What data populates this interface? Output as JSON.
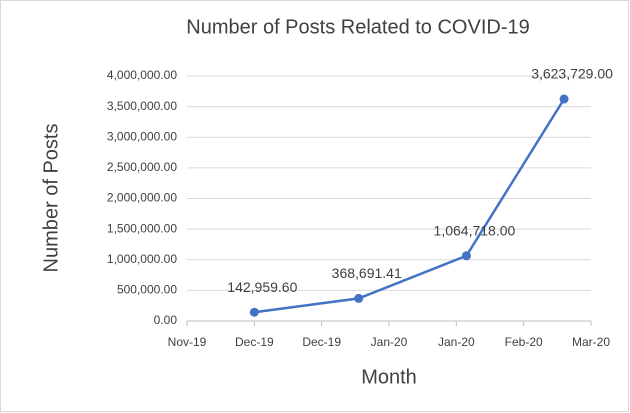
{
  "chart_data": {
    "type": "line",
    "title": "Number of Posts Related to COVID-19",
    "x_label": "Month",
    "y_label": "Number of Posts",
    "x": [
      1.0,
      2.55,
      4.15,
      5.6
    ],
    "series": [
      {
        "name": "Number of Posts",
        "color": "#4472c4",
        "values": [
          142959.6,
          368691.41,
          1064718,
          3623729
        ],
        "value_labels": [
          "142,959.60",
          "368,691.41",
          "1,064,718.00",
          "3,623,729.00"
        ]
      }
    ],
    "xlim": [
      0,
      6
    ],
    "xticks": [
      {
        "value": 0,
        "label": "Nov-19"
      },
      {
        "value": 1,
        "label": "Dec-19"
      },
      {
        "value": 2,
        "label": "Dec-19"
      },
      {
        "value": 3,
        "label": "Jan-20"
      },
      {
        "value": 4,
        "label": "Jan-20"
      },
      {
        "value": 5,
        "label": "Feb-20"
      },
      {
        "value": 6,
        "label": "Mar-20"
      }
    ],
    "ylim": [
      0,
      4000000
    ],
    "yticks": [
      {
        "value": 0,
        "label": "0.00"
      },
      {
        "value": 500000,
        "label": "500,000.00"
      },
      {
        "value": 1000000,
        "label": "1,000,000.00"
      },
      {
        "value": 1500000,
        "label": "1,500,000.00"
      },
      {
        "value": 2000000,
        "label": "2,000,000.00"
      },
      {
        "value": 2500000,
        "label": "2,500,000.00"
      },
      {
        "value": 3000000,
        "label": "3,000,000.00"
      },
      {
        "value": 3500000,
        "label": "3,500,000.00"
      },
      {
        "value": 4000000,
        "label": "4,000,000.00"
      }
    ],
    "grid": true
  }
}
